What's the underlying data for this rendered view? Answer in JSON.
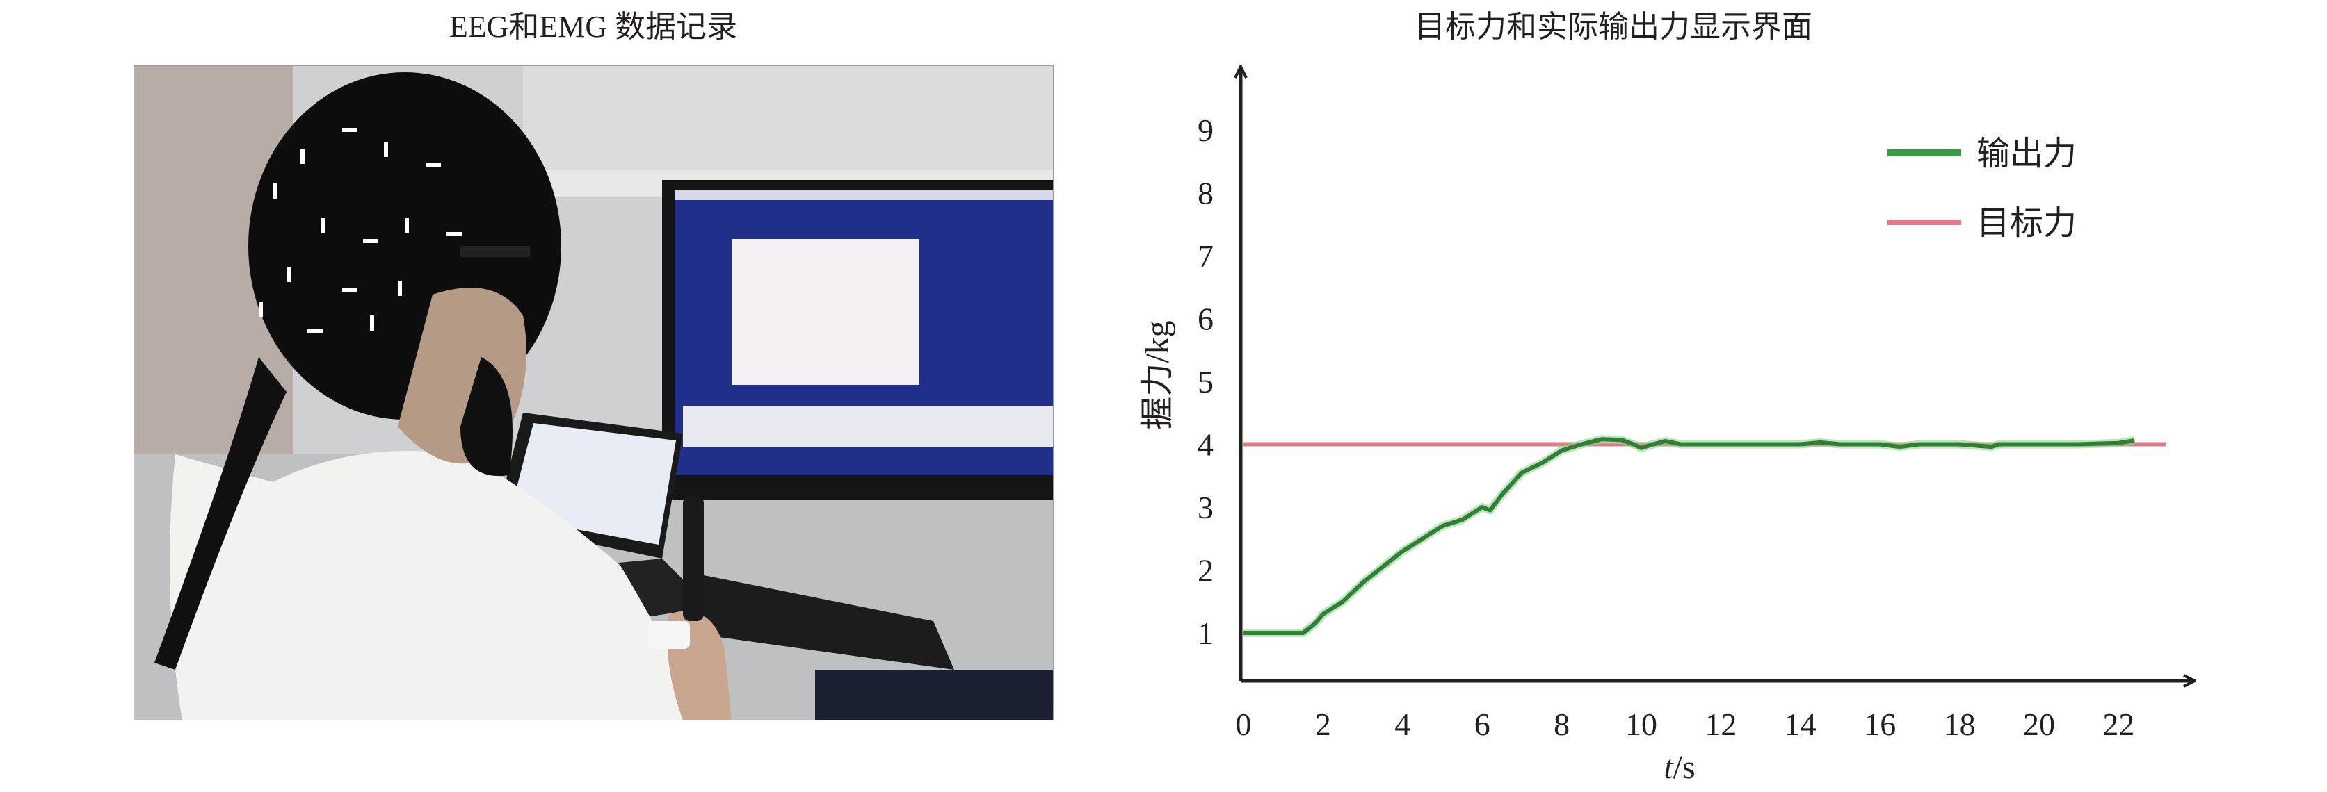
{
  "left_panel": {
    "title": "EEG和EMG 数据记录"
  },
  "right_panel": {
    "title": "目标力和实际输出力显示界面"
  },
  "chart_data": {
    "type": "line",
    "title": "目标力和实际输出力显示界面",
    "xlabel_italic": "t",
    "xlabel_unit": "/s",
    "ylabel": "握力/kg",
    "xticks": [
      0,
      2,
      4,
      6,
      8,
      10,
      12,
      14,
      16,
      18,
      20,
      22
    ],
    "yticks": [
      1,
      2,
      3,
      4,
      5,
      6,
      7,
      8,
      9
    ],
    "xlim": [
      0,
      23.5
    ],
    "ylim": [
      0.3,
      9.8
    ],
    "grid": false,
    "legend_placement": "top-right",
    "series": [
      {
        "name": "输出力",
        "color": "#3a9a45",
        "x": [
          0,
          0.5,
          1,
          1.5,
          1.8,
          2,
          2.5,
          3,
          3.5,
          4,
          4.5,
          5,
          5.5,
          6,
          6.2,
          6.5,
          7,
          7.5,
          8,
          8.5,
          9,
          9.5,
          9.8,
          10,
          10.3,
          10.6,
          11,
          12,
          13,
          14,
          14.5,
          15,
          16,
          16.5,
          17,
          18,
          18.8,
          19,
          20,
          21,
          22,
          22.4
        ],
        "y": [
          1,
          1,
          1,
          1,
          1.15,
          1.3,
          1.5,
          1.8,
          2.05,
          2.3,
          2.5,
          2.7,
          2.8,
          3.0,
          2.95,
          3.2,
          3.55,
          3.7,
          3.9,
          4.0,
          4.08,
          4.07,
          4.0,
          3.94,
          4.0,
          4.05,
          4.0,
          4.0,
          4.0,
          4.0,
          4.03,
          4.0,
          4.0,
          3.96,
          4.0,
          4.0,
          3.96,
          4.0,
          4.0,
          4.0,
          4.02,
          4.06
        ]
      },
      {
        "name": "目标力",
        "color": "#e07b8a",
        "x": [
          0,
          23.2
        ],
        "y": [
          4,
          4
        ]
      }
    ]
  }
}
